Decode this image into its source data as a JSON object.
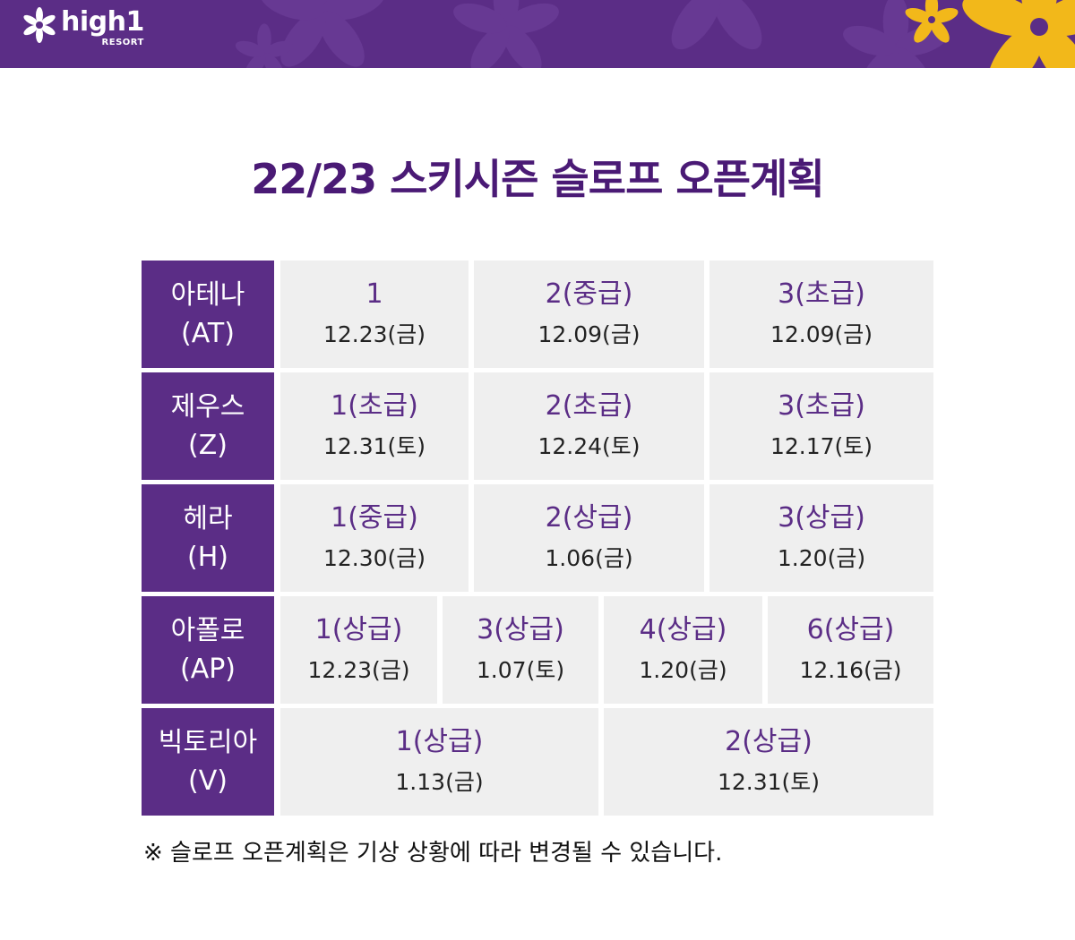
{
  "header": {
    "logo_word": "high1",
    "logo_sub": "RESORT",
    "logo_icon": "flower-icon",
    "brand_color": "#5b2d86",
    "accent_color": "#f2b81a"
  },
  "title": "22/23 스키시즌 슬로프 오픈계획",
  "rows": [
    {
      "name": "아테나",
      "code": "(AT)",
      "slopes": [
        {
          "slope": "1",
          "date": "12.23(금)"
        },
        {
          "slope": "2(중급)",
          "date": "12.09(금)"
        },
        {
          "slope": "3(초급)",
          "date": "12.09(금)"
        }
      ]
    },
    {
      "name": "제우스",
      "code": "(Z)",
      "slopes": [
        {
          "slope": "1(초급)",
          "date": "12.31(토)"
        },
        {
          "slope": "2(초급)",
          "date": "12.24(토)"
        },
        {
          "slope": "3(초급)",
          "date": "12.17(토)"
        }
      ]
    },
    {
      "name": "헤라",
      "code": "(H)",
      "slopes": [
        {
          "slope": "1(중급)",
          "date": "12.30(금)"
        },
        {
          "slope": "2(상급)",
          "date": "1.06(금)"
        },
        {
          "slope": "3(상급)",
          "date": "1.20(금)"
        }
      ]
    },
    {
      "name": "아폴로",
      "code": "(AP)",
      "slopes": [
        {
          "slope": "1(상급)",
          "date": "12.23(금)"
        },
        {
          "slope": "3(상급)",
          "date": "1.07(토)"
        },
        {
          "slope": "4(상급)",
          "date": "1.20(금)"
        },
        {
          "slope": "6(상급)",
          "date": "12.16(금)"
        }
      ]
    },
    {
      "name": "빅토리아",
      "code": "(V)",
      "slopes": [
        {
          "slope": "1(상급)",
          "date": "1.13(금)"
        },
        {
          "slope": "2(상급)",
          "date": "12.31(토)"
        }
      ]
    }
  ],
  "note": "※ 슬로프 오픈계획은 기상 상황에 따라 변경될 수 있습니다."
}
